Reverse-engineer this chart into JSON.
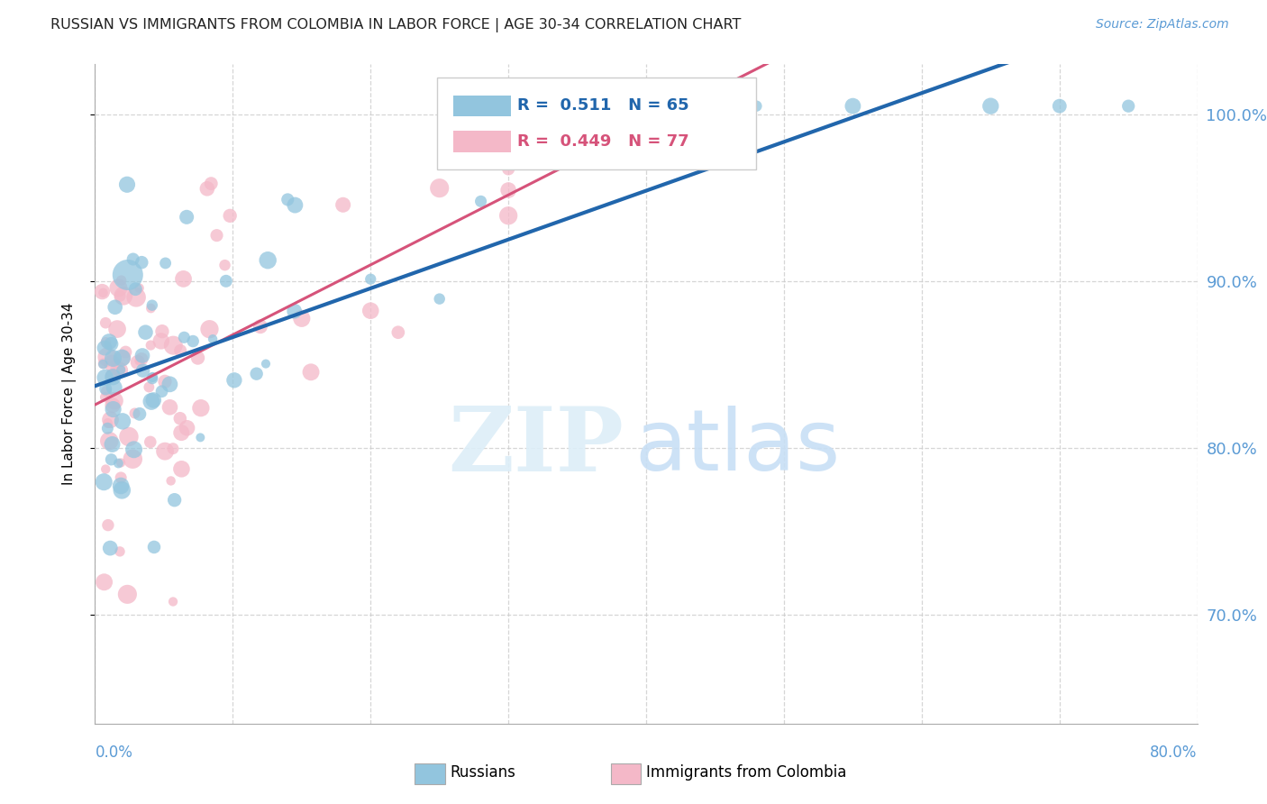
{
  "title": "RUSSIAN VS IMMIGRANTS FROM COLOMBIA IN LABOR FORCE | AGE 30-34 CORRELATION CHART",
  "source": "Source: ZipAtlas.com",
  "ylabel": "In Labor Force | Age 30-34",
  "xmin": 0.0,
  "xmax": 80.0,
  "ymin": 63.5,
  "ymax": 103.0,
  "yticks": [
    70.0,
    80.0,
    90.0,
    100.0
  ],
  "ytick_labels": [
    "70.0%",
    "80.0%",
    "90.0%",
    "100.0%"
  ],
  "legend_r_blue": "R =  0.511",
  "legend_n_blue": "N = 65",
  "legend_r_pink": "R =  0.449",
  "legend_n_pink": "N = 77",
  "color_blue_scatter": "#92c5de",
  "color_pink_scatter": "#f4b8c8",
  "color_blue_line": "#2166ac",
  "color_pink_line": "#d6537a",
  "color_axis_labels": "#5b9bd5",
  "background": "#ffffff",
  "watermark_zip_color": "#ddeef8",
  "watermark_atlas_color": "#c8dff5",
  "grid_color": "#cccccc",
  "n_russians": 65,
  "n_colombia": 77,
  "R_russians": 0.511,
  "R_colombia": 0.449,
  "trend_intercept_blue": 84.5,
  "trend_slope_blue": 0.22,
  "trend_intercept_pink": 84.0,
  "trend_slope_pink": 0.2
}
